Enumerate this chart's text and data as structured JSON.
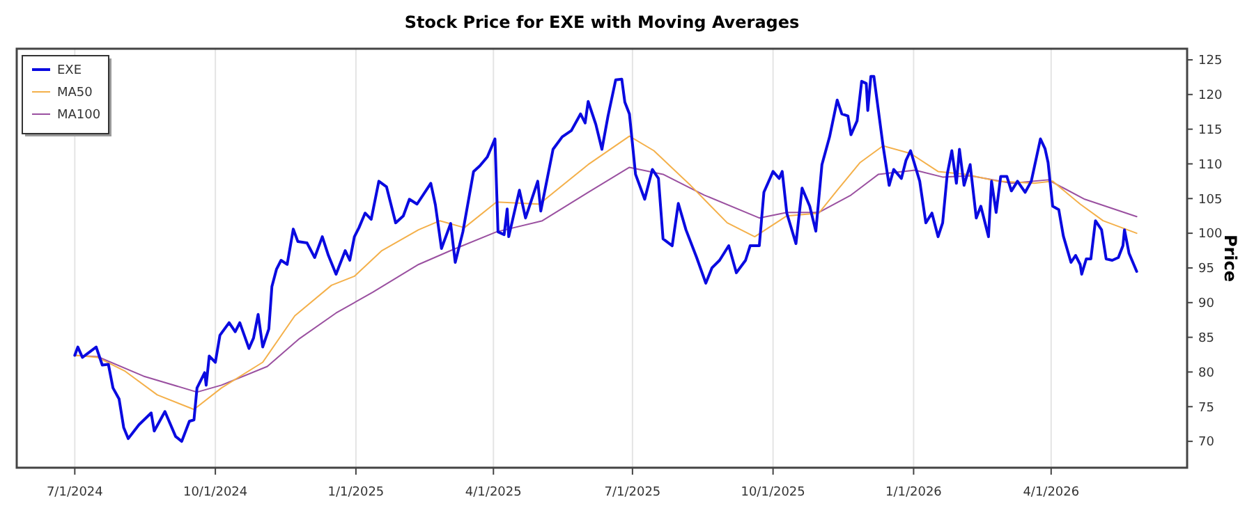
{
  "chart_data": {
    "type": "line",
    "title": "Stock Price for EXE with Moving Averages",
    "ylabel": "Price",
    "xlim": [
      "2024-05-24",
      "2026-06-29"
    ],
    "ylim": [
      66.2,
      126.6
    ],
    "xticks": [
      {
        "value": "2024-07-01",
        "label": "7/1/2024"
      },
      {
        "value": "2024-10-01",
        "label": "10/1/2024"
      },
      {
        "value": "2025-01-01",
        "label": "1/1/2025"
      },
      {
        "value": "2025-04-01",
        "label": "4/1/2025"
      },
      {
        "value": "2025-07-01",
        "label": "7/1/2025"
      },
      {
        "value": "2025-10-01",
        "label": "10/1/2025"
      },
      {
        "value": "2026-01-01",
        "label": "1/1/2026"
      },
      {
        "value": "2026-04-01",
        "label": "4/1/2026"
      }
    ],
    "yticks": [
      70,
      75,
      80,
      85,
      90,
      95,
      100,
      105,
      110,
      115,
      120,
      125
    ],
    "grid": "x",
    "legend": "top left",
    "series": [
      {
        "name": "EXE",
        "color": "#0a0ae0",
        "x": [
          "2024-07-01",
          "2024-07-03",
          "2024-07-06",
          "2024-07-15",
          "2024-07-19",
          "2024-07-23",
          "2024-07-26",
          "2024-07-30",
          "2024-08-02",
          "2024-08-05",
          "2024-08-12",
          "2024-08-20",
          "2024-08-22",
          "2024-08-29",
          "2024-09-05",
          "2024-09-09",
          "2024-09-14",
          "2024-09-17",
          "2024-09-19",
          "2024-09-24",
          "2024-09-25",
          "2024-09-27",
          "2024-10-01",
          "2024-10-04",
          "2024-10-10",
          "2024-10-14",
          "2024-10-17",
          "2024-10-23",
          "2024-10-26",
          "2024-10-29",
          "2024-11-01",
          "2024-11-05",
          "2024-11-07",
          "2024-11-10",
          "2024-11-13",
          "2024-11-17",
          "2024-11-21",
          "2024-11-24",
          "2024-11-30",
          "2024-12-05",
          "2024-12-10",
          "2024-12-14",
          "2024-12-19",
          "2024-12-25",
          "2024-12-28",
          "2024-12-31",
          "2025-01-03",
          "2025-01-07",
          "2025-01-11",
          "2025-01-16",
          "2025-01-21",
          "2025-01-27",
          "2025-02-01",
          "2025-02-05",
          "2025-02-10",
          "2025-02-19",
          "2025-02-22",
          "2025-02-26",
          "2025-03-04",
          "2025-03-07",
          "2025-03-12",
          "2025-03-19",
          "2025-03-23",
          "2025-03-28",
          "2025-04-02",
          "2025-04-04",
          "2025-04-08",
          "2025-04-10",
          "2025-04-11",
          "2025-04-18",
          "2025-04-22",
          "2025-04-30",
          "2025-05-02",
          "2025-05-10",
          "2025-05-16",
          "2025-05-22",
          "2025-05-28",
          "2025-05-31",
          "2025-06-02",
          "2025-06-07",
          "2025-06-11",
          "2025-06-15",
          "2025-06-20",
          "2025-06-24",
          "2025-06-26",
          "2025-06-29",
          "2025-07-03",
          "2025-07-09",
          "2025-07-14",
          "2025-07-18",
          "2025-07-21",
          "2025-07-27",
          "2025-07-31",
          "2025-08-05",
          "2025-08-12",
          "2025-08-18",
          "2025-08-22",
          "2025-08-27",
          "2025-09-02",
          "2025-09-07",
          "2025-09-13",
          "2025-09-16",
          "2025-09-22",
          "2025-09-25",
          "2025-10-01",
          "2025-10-05",
          "2025-10-07",
          "2025-10-10",
          "2025-10-16",
          "2025-10-20",
          "2025-10-25",
          "2025-10-29",
          "2025-11-02",
          "2025-11-07",
          "2025-11-12",
          "2025-11-15",
          "2025-11-19",
          "2025-11-21",
          "2025-11-25",
          "2025-11-28",
          "2025-12-01",
          "2025-12-02",
          "2025-12-04",
          "2025-12-06",
          "2025-12-12",
          "2025-12-16",
          "2025-12-19",
          "2025-12-24",
          "2025-12-27",
          "2025-12-30",
          "2026-01-05",
          "2026-01-09",
          "2026-01-13",
          "2026-01-17",
          "2026-01-20",
          "2026-01-23",
          "2026-01-26",
          "2026-01-29",
          "2026-01-31",
          "2026-02-03",
          "2026-02-07",
          "2026-02-11",
          "2026-02-14",
          "2026-02-19",
          "2026-02-21",
          "2026-02-24",
          "2026-02-27",
          "2026-03-03",
          "2026-03-06",
          "2026-03-10",
          "2026-03-15",
          "2026-03-19",
          "2026-03-25",
          "2026-03-28",
          "2026-03-30",
          "2026-04-02",
          "2026-04-06",
          "2026-04-09",
          "2026-04-14",
          "2026-04-17",
          "2026-04-20",
          "2026-04-21",
          "2026-04-24",
          "2026-04-27",
          "2026-04-30",
          "2026-05-04",
          "2026-05-07",
          "2026-05-11",
          "2026-05-15",
          "2026-05-18",
          "2026-05-19",
          "2026-05-22",
          "2026-05-27"
        ],
        "values": [
          82.4,
          83.6,
          82.1,
          83.6,
          81.0,
          81.1,
          77.7,
          76.1,
          72.0,
          70.4,
          72.4,
          74.1,
          71.5,
          74.3,
          70.7,
          70.0,
          72.9,
          73.1,
          77.7,
          79.9,
          78.1,
          82.3,
          81.4,
          85.3,
          87.1,
          85.8,
          87.1,
          83.4,
          84.9,
          88.3,
          83.6,
          86.2,
          92.3,
          94.8,
          96.1,
          95.5,
          100.6,
          98.8,
          98.6,
          96.5,
          99.5,
          96.8,
          94.1,
          97.5,
          96.1,
          99.5,
          100.8,
          102.9,
          102.0,
          107.5,
          106.7,
          101.5,
          102.5,
          104.9,
          104.2,
          107.2,
          104.1,
          97.8,
          101.4,
          95.8,
          100.2,
          108.9,
          109.7,
          111.0,
          113.6,
          100.2,
          99.8,
          103.5,
          99.5,
          106.2,
          102.2,
          107.5,
          103.2,
          112.1,
          113.9,
          114.8,
          117.2,
          115.9,
          119.0,
          115.7,
          112.1,
          116.9,
          122.1,
          122.2,
          118.9,
          117.2,
          108.5,
          104.9,
          109.2,
          107.9,
          99.2,
          98.2,
          104.3,
          100.5,
          96.5,
          92.8,
          95.0,
          96.1,
          98.2,
          94.3,
          96.1,
          98.2,
          98.2,
          105.9,
          108.9,
          107.9,
          108.9,
          102.9,
          98.5,
          106.5,
          103.9,
          100.3,
          109.9,
          113.9,
          119.2,
          117.2,
          116.9,
          114.2,
          116.2,
          121.9,
          121.6,
          117.7,
          122.6,
          122.6,
          112.6,
          106.9,
          109.2,
          107.9,
          110.5,
          111.9,
          107.5,
          101.5,
          102.9,
          99.5,
          101.5,
          108.5,
          111.9,
          107.2,
          112.1,
          106.9,
          109.9,
          102.2,
          103.9,
          99.5,
          107.5,
          103.0,
          108.2,
          108.2,
          106.1,
          107.5,
          105.9,
          107.5,
          113.6,
          112.2,
          110.2,
          103.9,
          103.4,
          99.6,
          95.8,
          96.8,
          95.5,
          94.1,
          96.3,
          96.3,
          101.8,
          100.5,
          96.3,
          96.1,
          96.5,
          98.2,
          100.5,
          97.1,
          94.5
        ]
      },
      {
        "name": "MA50",
        "color": "#f4b04a",
        "x": [
          "2024-07-01",
          "2024-07-16",
          "2024-08-03",
          "2024-08-24",
          "2024-09-17",
          "2024-10-05",
          "2024-11-01",
          "2024-11-22",
          "2024-12-16",
          "2024-12-31",
          "2025-01-18",
          "2025-02-11",
          "2025-02-25",
          "2025-03-13",
          "2025-04-03",
          "2025-05-01",
          "2025-06-02",
          "2025-06-29",
          "2025-07-15",
          "2025-08-08",
          "2025-09-01",
          "2025-09-19",
          "2025-10-10",
          "2025-10-31",
          "2025-11-12",
          "2025-11-27",
          "2025-12-12",
          "2025-12-30",
          "2026-01-17",
          "2026-02-04",
          "2026-02-25",
          "2026-03-21",
          "2026-04-02",
          "2026-04-20",
          "2026-05-05",
          "2026-05-27"
        ],
        "values": [
          82.4,
          82.1,
          80.1,
          76.7,
          74.6,
          77.7,
          81.4,
          88.1,
          92.5,
          93.8,
          97.5,
          100.5,
          101.8,
          100.8,
          104.5,
          104.2,
          109.9,
          114.0,
          111.9,
          106.9,
          101.5,
          99.5,
          102.5,
          102.9,
          106.2,
          110.2,
          112.6,
          111.5,
          108.9,
          108.5,
          107.5,
          107.2,
          107.5,
          104.2,
          101.8,
          100.0
        ]
      },
      {
        "name": "MA100",
        "color": "#9a50a0",
        "x": [
          "2024-07-01",
          "2024-07-16",
          "2024-08-15",
          "2024-09-19",
          "2024-10-05",
          "2024-11-04",
          "2024-11-25",
          "2024-12-19",
          "2025-01-12",
          "2025-02-11",
          "2025-03-04",
          "2025-04-03",
          "2025-05-03",
          "2025-06-02",
          "2025-06-29",
          "2025-07-21",
          "2025-08-17",
          "2025-09-22",
          "2025-10-10",
          "2025-10-31",
          "2025-11-21",
          "2025-12-09",
          "2026-01-02",
          "2026-01-20",
          "2026-02-07",
          "2026-03-06",
          "2026-03-30",
          "2026-04-23",
          "2026-05-27"
        ],
        "values": [
          82.4,
          82.2,
          79.4,
          77.1,
          78.1,
          80.8,
          84.8,
          88.5,
          91.5,
          95.5,
          97.5,
          100.2,
          101.8,
          105.9,
          109.5,
          108.5,
          105.5,
          102.2,
          103.0,
          103.0,
          105.5,
          108.5,
          109.1,
          108.1,
          108.3,
          107.2,
          107.7,
          104.9,
          102.4
        ]
      }
    ]
  }
}
